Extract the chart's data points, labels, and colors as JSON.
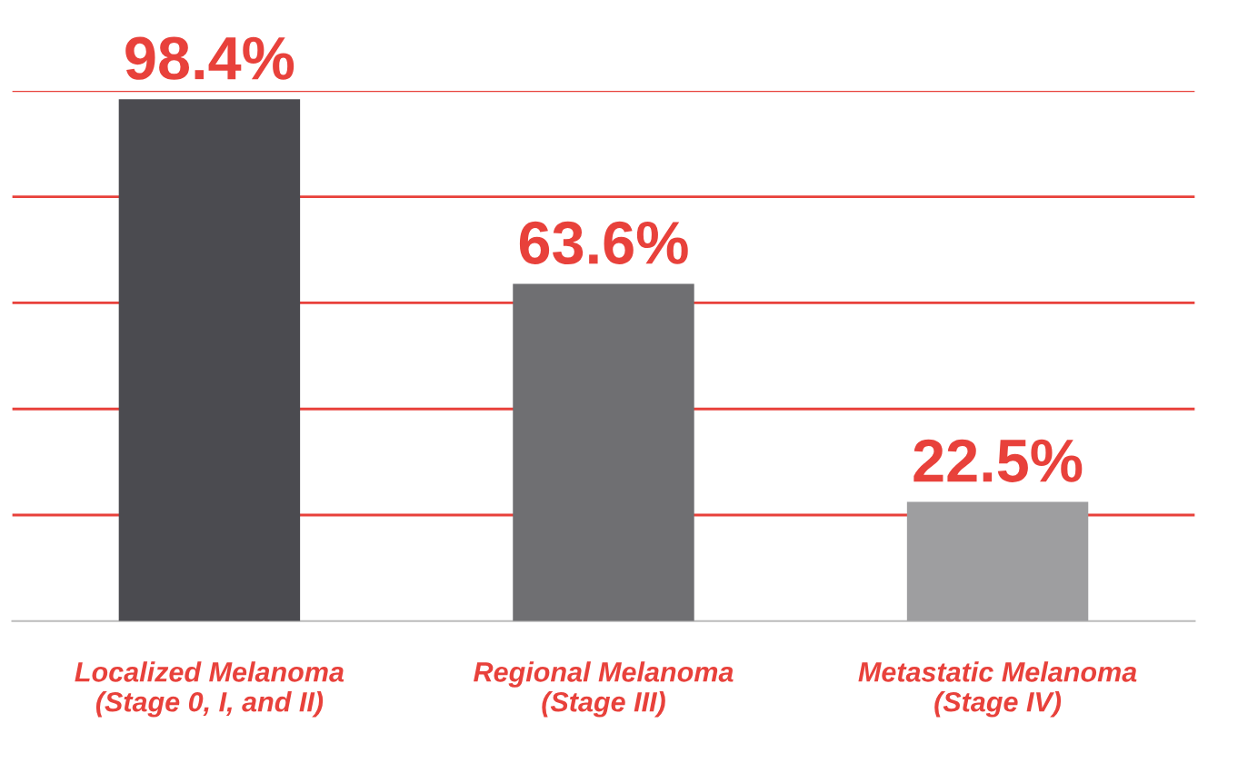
{
  "chart_data": {
    "type": "bar",
    "categories": [
      "Localized Melanoma\n(Stage 0, I, and II)",
      "Regional Melanoma\n(Stage III)",
      "Metastatic Melanoma\n(Stage IV)"
    ],
    "values": [
      98.4,
      63.6,
      22.5
    ],
    "colors": [
      "#4b4b50",
      "#6f6f72",
      "#9e9ea0"
    ],
    "value_labels": [
      "98.4%",
      "63.6%",
      "22.5%"
    ],
    "ylim": [
      0,
      100
    ],
    "yticks": [
      {
        "value": 20,
        "label": null
      },
      {
        "value": 40,
        "label": null
      },
      {
        "value": 60,
        "label": null
      },
      {
        "value": 80,
        "label": null
      },
      {
        "value": 100,
        "label": null
      }
    ],
    "grid": "y",
    "legend": false
  }
}
